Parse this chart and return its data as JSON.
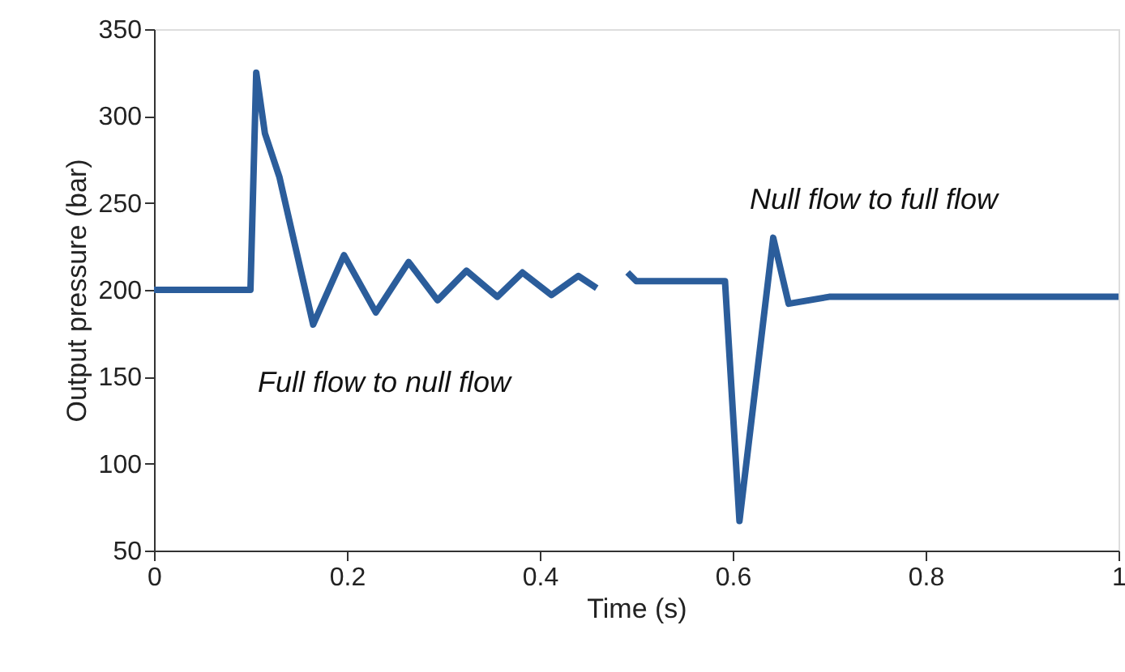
{
  "chart_data": {
    "type": "line",
    "xlabel": "Time (s)",
    "ylabel": "Output pressure  (bar)",
    "x": [
      0,
      0.1,
      0.106,
      0.115,
      0.13,
      0.165,
      0.197,
      0.23,
      0.264,
      0.294,
      0.324,
      0.356,
      0.382,
      0.412,
      0.44,
      0.459,
      0.475,
      0.491,
      0.5,
      0.592,
      0.607,
      0.642,
      0.658,
      0.7,
      0.8,
      0.9,
      1.0
    ],
    "series": [
      {
        "color": "#2b5d9b",
        "values": [
          200,
          200,
          325,
          290,
          265,
          180,
          220,
          187,
          216,
          194,
          211,
          196,
          210,
          197,
          208,
          201,
          null,
          210,
          205,
          205,
          67,
          230,
          192,
          196,
          196,
          196,
          196
        ]
      }
    ],
    "xlim": [
      0,
      1
    ],
    "xticks": [
      0,
      0.2,
      0.4,
      0.6,
      0.8,
      1
    ],
    "ylim": [
      50,
      350
    ],
    "yticks": [
      50,
      100,
      150,
      200,
      250,
      300,
      350
    ],
    "grid": false,
    "marker": "none",
    "line_style": "solid",
    "annotations": [
      "Full flow to null flow",
      "Null flow to full flow"
    ]
  }
}
